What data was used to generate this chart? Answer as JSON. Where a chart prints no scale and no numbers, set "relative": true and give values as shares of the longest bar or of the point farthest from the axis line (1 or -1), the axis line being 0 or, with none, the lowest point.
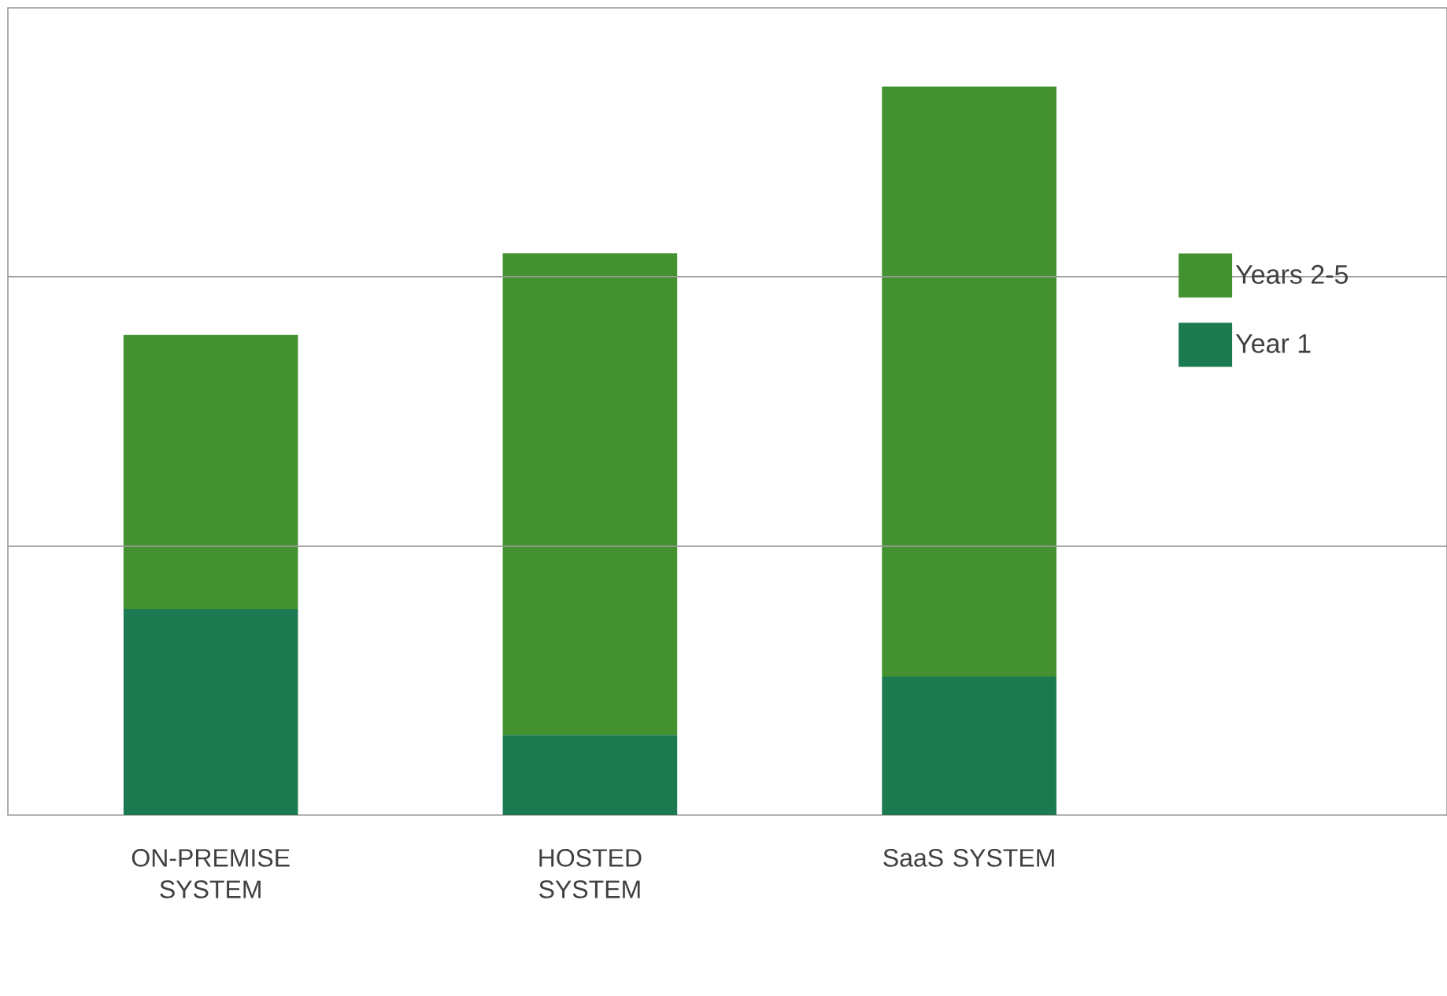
{
  "chart_data": {
    "type": "bar",
    "stacked": true,
    "relative": true,
    "legend": "right",
    "ref_lines": [
      {
        "axis": "y",
        "value": 0.369,
        "color": "#999999"
      },
      {
        "axis": "y",
        "value": 0.739,
        "color": "#999999"
      }
    ],
    "categories": [
      "ON-PREMISE SYSTEM",
      "HOSTED SYSTEM",
      "SaaS SYSTEM"
    ],
    "series": [
      {
        "name": "Year 1",
        "color": "#1b7a4f",
        "values": [
          0.283,
          0.11,
          0.19
        ]
      },
      {
        "name": "Years 2-5",
        "color": "#43912f",
        "values": [
          0.376,
          0.661,
          0.81
        ]
      }
    ]
  }
}
